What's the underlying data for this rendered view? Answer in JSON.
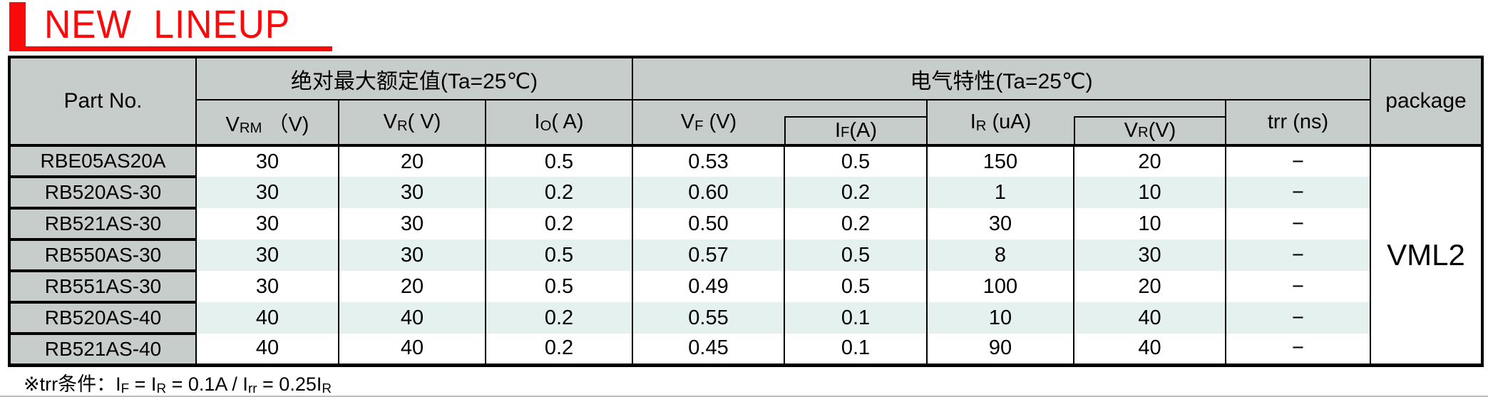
{
  "title": "NEW  LINEUP",
  "colors": {
    "accent": "#f90b0b",
    "header_bg": "#c6cdcb",
    "stripe": "#e4f1ef"
  },
  "table": {
    "part_no_header": "Part No.",
    "group_headers": [
      {
        "label": "绝对最大额定值(Ta=25℃)",
        "colspan": 3
      },
      {
        "label": "电气特性(Ta=25℃)",
        "colspan": 5
      }
    ],
    "package_header": "package",
    "columns": [
      "V~RM~ （V)",
      "V~R~( V)",
      "I~O~( A)",
      "V~F~ (V)",
      "I~F~ (A)",
      "I~R~ (uA)",
      "V~R~ (V)",
      "trr (ns)"
    ],
    "rows": [
      {
        "part": "RBE05AS20A",
        "values": [
          "30",
          "20",
          "0.5",
          "0.53",
          "0.5",
          "150",
          "20",
          "−"
        ]
      },
      {
        "part": "RB520AS-30",
        "values": [
          "30",
          "30",
          "0.2",
          "0.60",
          "0.2",
          "1",
          "10",
          "−"
        ]
      },
      {
        "part": "RB521AS-30",
        "values": [
          "30",
          "30",
          "0.2",
          "0.50",
          "0.2",
          "30",
          "10",
          "−"
        ]
      },
      {
        "part": "RB550AS-30",
        "values": [
          "30",
          "30",
          "0.5",
          "0.57",
          "0.5",
          "8",
          "30",
          "−"
        ]
      },
      {
        "part": "RB551AS-30",
        "values": [
          "30",
          "20",
          "0.5",
          "0.49",
          "0.5",
          "100",
          "20",
          "−"
        ]
      },
      {
        "part": "RB520AS-40",
        "values": [
          "40",
          "40",
          "0.2",
          "0.55",
          "0.1",
          "10",
          "40",
          "−"
        ]
      },
      {
        "part": "RB521AS-40",
        "values": [
          "40",
          "40",
          "0.2",
          "0.45",
          "0.1",
          "90",
          "40",
          "−"
        ]
      }
    ],
    "package_value": "VML2"
  },
  "footnote": "※trr条件：I~F~ = I~R~ = 0.1A / I~rr~ = 0.25I~R~"
}
